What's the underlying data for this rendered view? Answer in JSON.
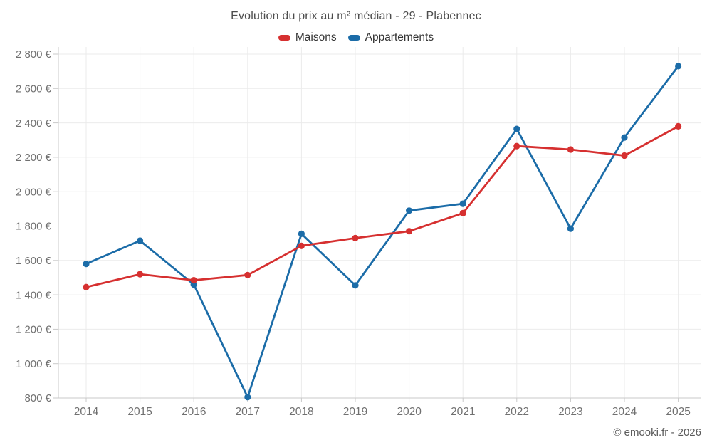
{
  "title": "Evolution du prix au m² médian - 29 - Plabennec",
  "footer": {
    "copyright": "© emooki.fr - 2026"
  },
  "colors": {
    "maisons": "#d63030",
    "appartements": "#1b6ca8",
    "grid": "#ebebeb",
    "axis": "#c9c9c9",
    "tick_label": "#707070"
  },
  "chart_data": {
    "type": "line",
    "title": "Evolution du prix au m² médian - 29 - Plabennec",
    "categories": [
      "2014",
      "2015",
      "2016",
      "2017",
      "2018",
      "2019",
      "2020",
      "2021",
      "2022",
      "2023",
      "2024",
      "2025"
    ],
    "series": [
      {
        "name": "Maisons",
        "color": "#d63030",
        "values": [
          1445,
          1520,
          1485,
          1515,
          1685,
          1730,
          1770,
          1875,
          2265,
          2245,
          2210,
          2380
        ]
      },
      {
        "name": "Appartements",
        "color": "#1b6ca8",
        "values": [
          1580,
          1715,
          1460,
          805,
          1755,
          1455,
          1890,
          1930,
          2365,
          1785,
          2315,
          2730
        ]
      }
    ],
    "xlabel": "",
    "ylabel": "",
    "ylim": [
      800,
      2800
    ],
    "ytick_step": 200,
    "y_tick_labels": [
      "800 €",
      "1 000 €",
      "1 200 €",
      "1 400 €",
      "1 600 €",
      "1 800 €",
      "2 000 €",
      "2 200 €",
      "2 400 €",
      "2 600 €",
      "2 800 €"
    ],
    "grid": true,
    "legend_position": "top",
    "currency": "€",
    "point_markers": true
  }
}
